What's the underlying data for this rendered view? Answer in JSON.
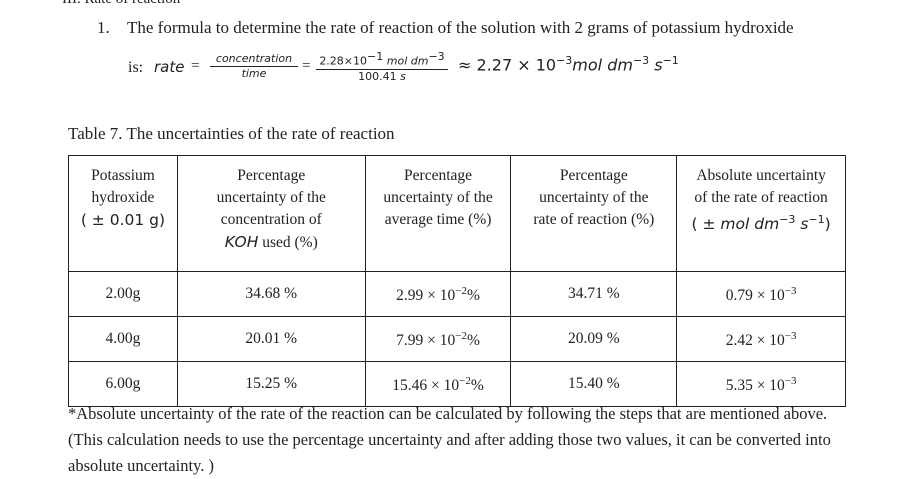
{
  "section_heading": "III. Rate of reaction",
  "item": {
    "number": "1.",
    "text": "The formula to determine the rate of reaction of the solution with 2 grams of potassium hydroxide"
  },
  "formula": {
    "prefix": "is:",
    "lhs": "rate",
    "eq": "=",
    "frac1_num": "concentration",
    "frac1_den": "time",
    "frac2_num": "2.28×10",
    "frac2_num_exp": "−1",
    "frac2_num_unit": "mol dm",
    "frac2_num_unit_exp": "−3",
    "frac2_den": "100.41",
    "frac2_den_unit": "s",
    "result": "≈ 2.27 × 10",
    "result_exp": "−3",
    "result_unit": "mol dm",
    "result_unit_exp": "−3",
    "result_unit2": "s",
    "result_unit2_exp": "−1"
  },
  "caption": "Table 7. The uncertainties of the rate of reaction",
  "table": {
    "headers": {
      "h1": [
        "Potassium",
        "hydroxide",
        "( ± 0.01 g)"
      ],
      "h2": [
        "Percentage",
        "uncertainty of the",
        "concentration of",
        "KOH",
        "used (%)"
      ],
      "h3": [
        "Percentage",
        "uncertainty of the",
        "average time (%)"
      ],
      "h4": [
        "Percentage",
        "uncertainty of the",
        "rate of reaction (%)"
      ],
      "h5": [
        "Absolute uncertainty",
        "of the rate of reaction",
        "( ±",
        "mol dm",
        "−3",
        "s",
        "−1",
        ")"
      ]
    },
    "rows": [
      {
        "mass": "2.00g",
        "conc": "34.68 %",
        "time_base": "2.99 × 10",
        "time_exp": "−2",
        "time_pct": "%",
        "rate": "34.71 %",
        "abs_base": "0.79 × 10",
        "abs_exp": "−3"
      },
      {
        "mass": "4.00g",
        "conc": "20.01 %",
        "time_base": "7.99 × 10",
        "time_exp": "−2",
        "time_pct": "%",
        "rate": "20.09 %",
        "abs_base": "2.42 × 10",
        "abs_exp": "−3"
      },
      {
        "mass": "6.00g",
        "conc": "15.25 %",
        "time_base": "15.46 × 10",
        "time_exp": "−2",
        "time_pct": "%",
        "rate": "15.40 %",
        "abs_base": "5.35 × 10",
        "abs_exp": "−3"
      }
    ]
  },
  "note": "*Absolute uncertainty of the rate of the reaction can be calculated by following the steps that are mentioned above. (This calculation needs to use the percentage uncertainty and after adding those two values, it can be converted into absolute uncertainty. )"
}
